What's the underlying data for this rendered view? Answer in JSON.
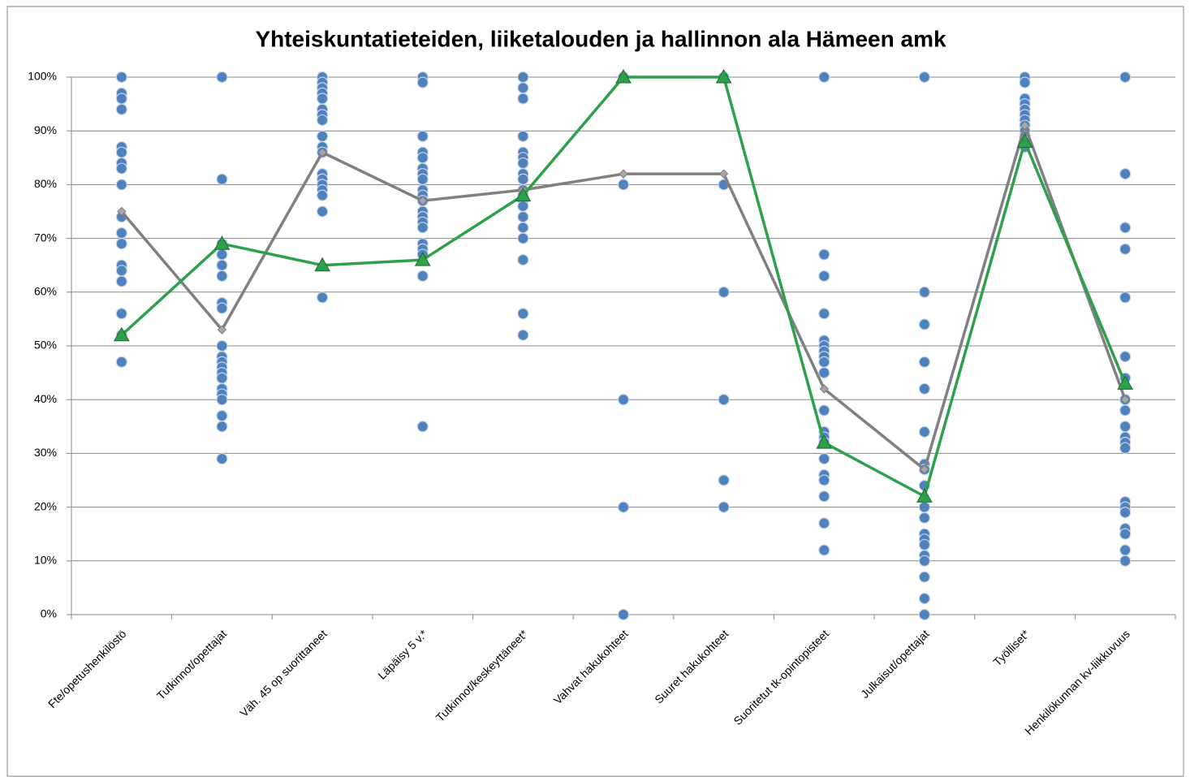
{
  "chart_data": {
    "type": "line",
    "title": "Yhteiskuntatieteiden, liiketalouden ja hallinnon ala Hämeen amk",
    "categories": [
      "Fte/opetushenkilöstö",
      "Tutkinnot/opettajat",
      "Väh. 45 op suorittaneet",
      "Läpäisy 5 v.*",
      "Tutkinnot/keskeyttäneet*",
      "Vahvat hakukohteet",
      "Suuret hakukohteet",
      "Suoritetut tk-opintopisteet",
      "Julkaisut/opettajat",
      "Työlliset*",
      "Henkilökunnan kv-liikkuvuus"
    ],
    "points": {
      "color": "#4f81bd",
      "values": [
        [
          100,
          97,
          96,
          94,
          87,
          86,
          84,
          83,
          80,
          74,
          71,
          69,
          65,
          64,
          62,
          56,
          52,
          47
        ],
        [
          100,
          81,
          69,
          67,
          65,
          63,
          58,
          57,
          50,
          48,
          47,
          46,
          45,
          44,
          42,
          41,
          40,
          37,
          35,
          29
        ],
        [
          100,
          99,
          98,
          97,
          96,
          94,
          93,
          92,
          89,
          87,
          86,
          82,
          81,
          80,
          79,
          78,
          75,
          59
        ],
        [
          100,
          99,
          89,
          86,
          85,
          83,
          82,
          81,
          79,
          78,
          77,
          75,
          74,
          73,
          72,
          69,
          68,
          67,
          63,
          35
        ],
        [
          100,
          98,
          96,
          89,
          86,
          85,
          84,
          82,
          81,
          79,
          78,
          77,
          76,
          74,
          72,
          70,
          66,
          56,
          52
        ],
        [
          100,
          80,
          40,
          20,
          0
        ],
        [
          100,
          80,
          60,
          40,
          25,
          20
        ],
        [
          100,
          67,
          63,
          56,
          51,
          50,
          49,
          48,
          47,
          45,
          38,
          34,
          33,
          32,
          29,
          26,
          25,
          22,
          17,
          12
        ],
        [
          100,
          60,
          54,
          47,
          42,
          34,
          28,
          27,
          24,
          20,
          18,
          15,
          14,
          13,
          11,
          10,
          7,
          3,
          0
        ],
        [
          100,
          99,
          96,
          95,
          94,
          93,
          92,
          91,
          90,
          89,
          88,
          87
        ],
        [
          100,
          82,
          72,
          68,
          59,
          48,
          44,
          40,
          38,
          35,
          33,
          32,
          31,
          21,
          20,
          19,
          16,
          15,
          12,
          10
        ]
      ]
    },
    "series": [
      {
        "color": "#808080",
        "marker": "diamond",
        "values": [
          75,
          53,
          86,
          77,
          79,
          82,
          82,
          42,
          27,
          91,
          40
        ]
      },
      {
        "color": "#2ea04a",
        "marker": "triangle",
        "values": [
          52,
          69,
          65,
          66,
          78,
          100,
          100,
          32,
          22,
          88,
          43
        ]
      }
    ],
    "ylim": [
      0,
      100
    ],
    "yticks": [
      {
        "value": 0,
        "label": "0%"
      },
      {
        "value": 10,
        "label": "10%"
      },
      {
        "value": 20,
        "label": "20%"
      },
      {
        "value": 30,
        "label": "30%"
      },
      {
        "value": 40,
        "label": "40%"
      },
      {
        "value": 50,
        "label": "50%"
      },
      {
        "value": 60,
        "label": "60%"
      },
      {
        "value": 70,
        "label": "70%"
      },
      {
        "value": 80,
        "label": "80%"
      },
      {
        "value": 90,
        "label": "90%"
      },
      {
        "value": 100,
        "label": "100%"
      }
    ],
    "grid": true
  }
}
